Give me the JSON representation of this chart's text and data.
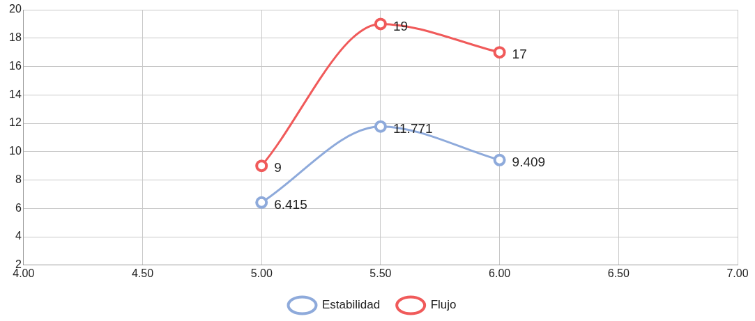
{
  "chart_data": {
    "type": "line",
    "x": [
      5,
      5.5,
      6
    ],
    "series": [
      {
        "name": "Estabilidad",
        "color": "#8eaadb",
        "values": [
          6.415,
          11.771,
          9.409
        ]
      },
      {
        "name": "Flujo",
        "color": "#f05a5a",
        "values": [
          9,
          19,
          17
        ]
      }
    ],
    "xlim": [
      4,
      7
    ],
    "xticks": [
      {
        "value": 4,
        "label": "4.00"
      },
      {
        "value": 4.5,
        "label": "4.50"
      },
      {
        "value": 5,
        "label": "5.00"
      },
      {
        "value": 5.5,
        "label": "5.50"
      },
      {
        "value": 6,
        "label": "6.00"
      },
      {
        "value": 6.5,
        "label": "6.50"
      },
      {
        "value": 7,
        "label": "7.00"
      }
    ],
    "ylim": [
      2,
      20
    ],
    "yticks": [
      2,
      4,
      6,
      8,
      10,
      12,
      14,
      16,
      18,
      20
    ],
    "grid": true,
    "legend": "bottom",
    "marker": "circle",
    "line_style": "solid",
    "data_labels": true
  }
}
